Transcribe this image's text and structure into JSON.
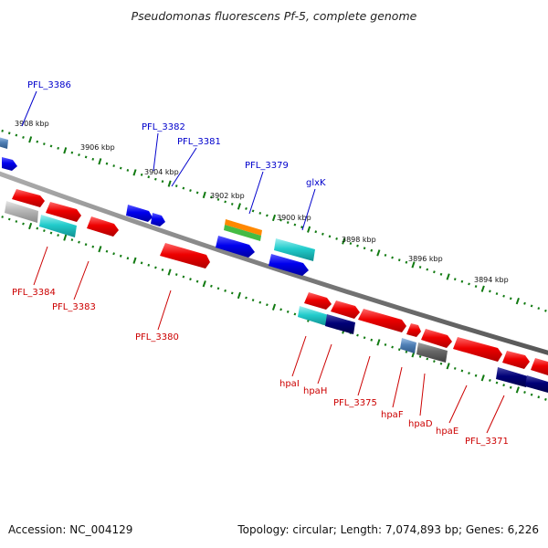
{
  "title": "Pseudomonas fluorescens Pf-5, complete genome",
  "footer": {
    "accession": "Accession: NC_004129",
    "summary": "Topology: circular; Length: 7,074,893 bp; Genes: 6,226"
  },
  "scale_labels": [
    "3908 kbp",
    "3906 kbp",
    "3904 kbp",
    "3902 kbp",
    "3900 kbp",
    "3898 kbp",
    "3896 kbp",
    "3894 kbp"
  ],
  "forward_gene_labels": [
    "PFL_3386",
    "PFL_3382",
    "PFL_3381",
    "PFL_3379",
    "glxK"
  ],
  "reverse_gene_labels": [
    "PFL_3384",
    "PFL_3383",
    "PFL_3380",
    "hpaI",
    "hpaH",
    "PFL_3375",
    "hpaF",
    "hpaD",
    "hpaE",
    "PFL_3371"
  ],
  "colors": {
    "forward_label": "#0000cc",
    "reverse_label": "#cc0000",
    "backbone": "#808080",
    "scale_ticks": "#117a11",
    "gene_red": "#ee0000",
    "gene_blue": "#0000ee",
    "gene_cyan": "#22cccc",
    "gene_gray": "#aaaaaa",
    "gene_navy": "#000077",
    "gene_steelblue": "#4f7fb5",
    "gene_darkgray": "#666666",
    "gene_orange": "#ff8800",
    "gene_green": "#44bb44"
  }
}
